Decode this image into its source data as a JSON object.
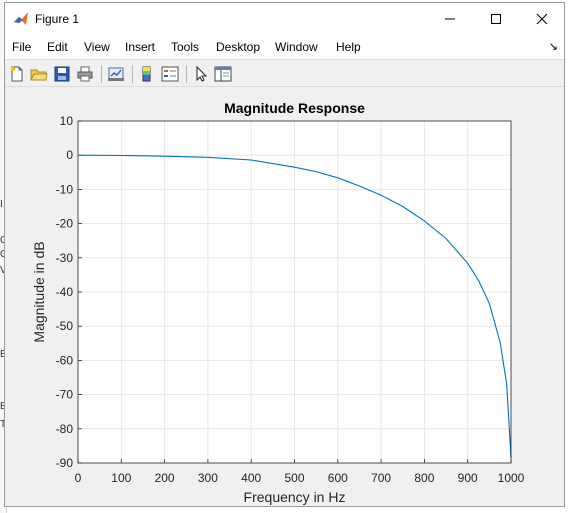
{
  "window": {
    "title": "Figure 1"
  },
  "menu": {
    "items": [
      "File",
      "Edit",
      "View",
      "Insert",
      "Tools",
      "Desktop",
      "Window",
      "Help"
    ]
  },
  "toolbar": {
    "buttons": [
      "new-figure",
      "open-file",
      "save-figure",
      "print-figure",
      "link-plot",
      "insert-colorbar",
      "insert-legend",
      "edit-plot",
      "property-inspector"
    ]
  },
  "colors": {
    "window_bg": "#f0f0f0",
    "axes_bg": "#ffffff",
    "line": "#0072bd",
    "grid": "#e0e0e0"
  },
  "chart_data": {
    "type": "line",
    "title": "Magnitude Response",
    "xlabel": "Frequency in Hz",
    "ylabel": "Magnitude in dB",
    "xlim": [
      0,
      1000
    ],
    "ylim": [
      -90,
      10
    ],
    "xticks": [
      0,
      100,
      200,
      300,
      400,
      500,
      600,
      700,
      800,
      900,
      1000
    ],
    "yticks": [
      10,
      0,
      -10,
      -20,
      -30,
      -40,
      -50,
      -60,
      -70,
      -80,
      -90
    ],
    "grid": true,
    "series": [
      {
        "x": [
          0,
          100,
          200,
          300,
          400,
          500,
          550,
          600,
          650,
          700,
          750,
          800,
          850,
          900,
          925,
          950,
          975,
          990,
          1000
        ],
        "y": [
          0,
          -0.1,
          -0.3,
          -0.6,
          -1.4,
          -3.5,
          -4.8,
          -6.6,
          -9.0,
          -11.7,
          -15.0,
          -19.2,
          -24.4,
          -31.6,
          -36.6,
          -43.3,
          -54.8,
          -67,
          -88.5
        ]
      }
    ]
  }
}
